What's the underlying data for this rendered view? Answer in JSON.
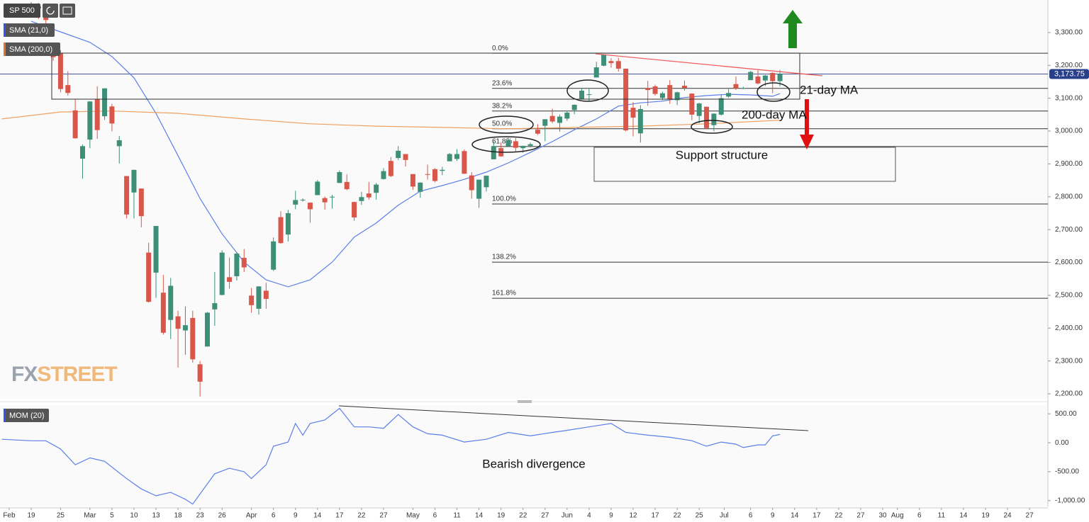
{
  "chart_data": {
    "type": "candlestick",
    "symbol": "SP 500",
    "indicators": [
      "SMA (21,0)",
      "SMA (200,0)"
    ],
    "last_price": {
      "value": 3173.75,
      "label": "3,173.75"
    },
    "candles": [
      [
        3380,
        3393,
        3378,
        3386
      ],
      [
        3380,
        3390,
        3341,
        3373
      ],
      [
        3360,
        3360,
        3328,
        3338
      ],
      [
        3257,
        3259,
        3214,
        3225
      ],
      [
        3238,
        3246,
        3118,
        3128
      ],
      [
        3140,
        3182,
        3108,
        3116
      ],
      [
        3063,
        3097,
        2977,
        2978
      ],
      [
        2916,
        2959,
        2855,
        2954
      ],
      [
        2974,
        3091,
        2948,
        3090
      ],
      [
        3096,
        3136,
        2976,
        3003
      ],
      [
        3045,
        3130,
        3034,
        3130
      ],
      [
        3075,
        3083,
        2999,
        3023
      ],
      [
        2954,
        2985,
        2901,
        2972
      ],
      [
        2863,
        2863,
        2734,
        2746
      ],
      [
        2813,
        2882,
        2734,
        2882
      ],
      [
        2825,
        2825,
        2707,
        2741
      ],
      [
        2630,
        2660,
        2478,
        2480
      ],
      [
        2569,
        2711,
        2492,
        2711
      ],
      [
        2508,
        2562,
        2380,
        2386
      ],
      [
        2425,
        2553,
        2367,
        2529
      ],
      [
        2436,
        2453,
        2280,
        2398
      ],
      [
        2393,
        2466,
        2319,
        2409
      ],
      [
        2431,
        2453,
        2295,
        2305
      ],
      [
        2290,
        2300,
        2192,
        2237
      ],
      [
        2344,
        2449,
        2344,
        2447
      ],
      [
        2457,
        2571,
        2407,
        2476
      ],
      [
        2501,
        2637,
        2500,
        2630
      ],
      [
        2555,
        2615,
        2520,
        2541
      ],
      [
        2558,
        2631,
        2545,
        2627
      ],
      [
        2614,
        2641,
        2571,
        2585
      ],
      [
        2499,
        2522,
        2447,
        2470
      ],
      [
        2459,
        2528,
        2441,
        2527
      ],
      [
        2514,
        2538,
        2459,
        2489
      ],
      [
        2578,
        2676,
        2574,
        2664
      ],
      [
        2738,
        2756,
        2657,
        2659
      ],
      [
        2685,
        2760,
        2664,
        2750
      ],
      [
        2776,
        2818,
        2762,
        2790
      ],
      [
        2790,
        2795,
        2785,
        2791
      ],
      [
        2782,
        2782,
        2721,
        2762
      ],
      [
        2805,
        2851,
        2805,
        2846
      ],
      [
        2796,
        2801,
        2761,
        2783
      ],
      [
        2799,
        2806,
        2764,
        2800
      ],
      [
        2842,
        2880,
        2842,
        2875
      ],
      [
        2845,
        2868,
        2820,
        2823
      ],
      [
        2784,
        2785,
        2727,
        2737
      ],
      [
        2787,
        2815,
        2775,
        2799
      ],
      [
        2810,
        2845,
        2791,
        2798
      ],
      [
        2812,
        2842,
        2791,
        2837
      ],
      [
        2854,
        2887,
        2852,
        2878
      ],
      [
        2909,
        2921,
        2860,
        2863
      ],
      [
        2918,
        2954,
        2912,
        2940
      ],
      [
        2930,
        2930,
        2892,
        2912
      ],
      [
        2869,
        2869,
        2821,
        2831
      ],
      [
        2815,
        2844,
        2797,
        2843
      ],
      [
        2869,
        2898,
        2852,
        2868
      ],
      [
        2884,
        2887,
        2844,
        2848
      ],
      [
        2879,
        2891,
        2866,
        2882
      ],
      [
        2908,
        2933,
        2908,
        2930
      ],
      [
        2915,
        2945,
        2909,
        2930
      ],
      [
        2939,
        2944,
        2870,
        2870
      ],
      [
        2865,
        2875,
        2794,
        2820
      ],
      [
        2794,
        2852,
        2766,
        2852
      ],
      [
        2829,
        2865,
        2816,
        2864
      ],
      [
        2914,
        2968,
        2914,
        2954
      ],
      [
        2948,
        2964,
        2922,
        2923
      ],
      [
        2954,
        2980,
        2953,
        2972
      ],
      [
        2969,
        2979,
        2938,
        2949
      ],
      [
        2948,
        2956,
        2934,
        2955
      ],
      [
        2955,
        2965,
        2950,
        2960
      ],
      [
        3004,
        3021,
        2988,
        2992
      ],
      [
        3016,
        3036,
        2969,
        3036
      ],
      [
        3046,
        3068,
        3024,
        3029
      ],
      [
        3025,
        3050,
        2998,
        3044
      ],
      [
        3038,
        3062,
        3031,
        3056
      ],
      [
        3064,
        3081,
        3051,
        3080
      ],
      [
        3098,
        3131,
        3098,
        3123
      ],
      [
        3112,
        3128,
        3090,
        3112
      ],
      [
        3163,
        3211,
        3163,
        3194
      ],
      [
        3199,
        3233,
        3197,
        3232
      ],
      [
        3213,
        3222,
        3193,
        3207
      ],
      [
        3213,
        3223,
        3181,
        3190
      ],
      [
        3190,
        3190,
        2999,
        3002
      ],
      [
        3071,
        3088,
        2984,
        3041
      ],
      [
        2993,
        3079,
        2965,
        3067
      ],
      [
        3131,
        3153,
        3077,
        3125
      ],
      [
        3136,
        3141,
        3108,
        3113
      ],
      [
        3101,
        3120,
        3094,
        3115
      ],
      [
        3140,
        3155,
        3083,
        3098
      ],
      [
        3094,
        3120,
        3079,
        3118
      ],
      [
        3138,
        3154,
        3123,
        3131
      ],
      [
        3114,
        3115,
        3033,
        3050
      ],
      [
        3046,
        3086,
        3024,
        3084
      ],
      [
        3074,
        3074,
        3005,
        3009
      ],
      [
        3018,
        3054,
        2999,
        3053
      ],
      [
        3050,
        3112,
        3047,
        3100
      ],
      [
        3105,
        3128,
        3101,
        3116
      ],
      [
        3143,
        3166,
        3125,
        3130
      ],
      [
        3130,
        3135,
        3128,
        3131
      ],
      [
        3155,
        3183,
        3155,
        3180
      ],
      [
        3166,
        3185,
        3142,
        3145
      ],
      [
        3154,
        3171,
        3137,
        3169
      ],
      [
        3177,
        3179,
        3115,
        3152
      ],
      [
        3152,
        3186,
        3136,
        3174
      ]
    ],
    "series": [
      {
        "name": "SMA (21,0)",
        "color": "#5b7fe8",
        "x": [
          0,
          4,
          8,
          11,
          14,
          17,
          20,
          23,
          26,
          29,
          32,
          35,
          38,
          41,
          44,
          47,
          50,
          53,
          56,
          59,
          62,
          65,
          68,
          71,
          74,
          77,
          80,
          83,
          86,
          89,
          92,
          95,
          98,
          101,
          102
        ],
        "values": [
          3334,
          3302,
          3270,
          3227,
          3162,
          3054,
          2925,
          2795,
          2687,
          2601,
          2547,
          2526,
          2547,
          2601,
          2677,
          2720,
          2774,
          2817,
          2834,
          2853,
          2875,
          2903,
          2935,
          2968,
          3004,
          3037,
          3076,
          3086,
          3091,
          3102,
          3108,
          3112,
          3110,
          3106,
          3114
        ]
      },
      {
        "name": "SMA (200,0)",
        "color": "#f0a060",
        "x": [
          -4,
          4,
          11,
          20,
          29,
          38,
          47,
          56,
          65,
          74,
          83,
          92,
          102
        ],
        "values": [
          3037,
          3058,
          3061,
          3054,
          3037,
          3022,
          3015,
          3011,
          3007,
          3011,
          3015,
          3022,
          3033
        ]
      }
    ],
    "fib_levels": [
      {
        "label": "0.0%",
        "value": 3237
      },
      {
        "label": "23.6%",
        "value": 3130
      },
      {
        "label": "38.2%",
        "value": 3061
      },
      {
        "label": "50.0%",
        "value": 3007
      },
      {
        "label": "61.8%",
        "value": 2953
      },
      {
        "label": "100.0%",
        "value": 2778
      },
      {
        "label": "138.2%",
        "value": 2601
      },
      {
        "label": "161.8%",
        "value": 2491
      }
    ],
    "xlim": [
      -4.25,
      138.5
    ],
    "ylim": [
      2185,
      3399
    ],
    "yticks": [
      {
        "value": 3300,
        "label": "3,300.00"
      },
      {
        "value": 3200,
        "label": "3,200.00"
      },
      {
        "value": 3100,
        "label": "3,100.00"
      },
      {
        "value": 3000,
        "label": "3,000.00"
      },
      {
        "value": 2900,
        "label": "2,900.00"
      },
      {
        "value": 2800,
        "label": "2,800.00"
      },
      {
        "value": 2700,
        "label": "2,700.00"
      },
      {
        "value": 2600,
        "label": "2,600.00"
      },
      {
        "value": 2500,
        "label": "2,500.00"
      },
      {
        "value": 2400,
        "label": "2,400.00"
      },
      {
        "value": 2300,
        "label": "2,300.00"
      },
      {
        "value": 2200,
        "label": "2,200.00"
      }
    ],
    "xticks": [
      {
        "value": -3,
        "label": "Feb"
      },
      {
        "value": 0,
        "label": "19"
      },
      {
        "value": 4,
        "label": "25"
      },
      {
        "value": 8,
        "label": "Mar"
      },
      {
        "value": 11,
        "label": "5"
      },
      {
        "value": 14,
        "label": "10"
      },
      {
        "value": 17,
        "label": "13"
      },
      {
        "value": 20,
        "label": "18"
      },
      {
        "value": 23,
        "label": "23"
      },
      {
        "value": 26,
        "label": "26"
      },
      {
        "value": 30,
        "label": "Apr"
      },
      {
        "value": 33,
        "label": "6"
      },
      {
        "value": 36,
        "label": "9"
      },
      {
        "value": 39,
        "label": "14"
      },
      {
        "value": 42,
        "label": "17"
      },
      {
        "value": 45,
        "label": "22"
      },
      {
        "value": 48,
        "label": "27"
      },
      {
        "value": 52,
        "label": "May"
      },
      {
        "value": 55,
        "label": "6"
      },
      {
        "value": 58,
        "label": "11"
      },
      {
        "value": 61,
        "label": "14"
      },
      {
        "value": 64,
        "label": "19"
      },
      {
        "value": 67,
        "label": "22"
      },
      {
        "value": 70,
        "label": "27"
      },
      {
        "value": 73,
        "label": "Jun"
      },
      {
        "value": 76,
        "label": "4"
      },
      {
        "value": 79,
        "label": "9"
      },
      {
        "value": 82,
        "label": "12"
      },
      {
        "value": 85,
        "label": "17"
      },
      {
        "value": 88,
        "label": "22"
      },
      {
        "value": 91,
        "label": "25"
      },
      {
        "value": 94.4,
        "label": "Jul"
      },
      {
        "value": 98,
        "label": "6"
      },
      {
        "value": 101,
        "label": "9"
      },
      {
        "value": 104,
        "label": "14"
      },
      {
        "value": 107,
        "label": "17"
      },
      {
        "value": 110,
        "label": "22"
      },
      {
        "value": 113,
        "label": "27"
      },
      {
        "value": 116,
        "label": "30"
      },
      {
        "value": 118,
        "label": "Aug"
      },
      {
        "value": 121,
        "label": "6"
      },
      {
        "value": 124,
        "label": "11"
      },
      {
        "value": 127,
        "label": "14"
      },
      {
        "value": 130,
        "label": "19"
      },
      {
        "value": 133,
        "label": "24"
      },
      {
        "value": 136,
        "label": "27"
      }
    ],
    "momentum": {
      "name": "MOM (20)",
      "color": "#5b7fe8",
      "x": [
        -4,
        0,
        2,
        4,
        6,
        8,
        10,
        13,
        15,
        17,
        19,
        21,
        22,
        25,
        27,
        29,
        30,
        32,
        33,
        35,
        36,
        37,
        38,
        40,
        42,
        44,
        46,
        48,
        50,
        52,
        54,
        56,
        59,
        62,
        65,
        68,
        71,
        73,
        76,
        79,
        81,
        84,
        87,
        90,
        92,
        94,
        96,
        97,
        99,
        100,
        101,
        102
      ],
      "values": [
        60,
        35,
        35,
        -107,
        -381,
        -262,
        -321,
        -619,
        -798,
        -917,
        -857,
        -976,
        -1060,
        -536,
        -440,
        -500,
        -619,
        -381,
        -60,
        12,
        333,
        131,
        333,
        393,
        595,
        274,
        274,
        250,
        488,
        274,
        155,
        131,
        12,
        60,
        179,
        119,
        179,
        214,
        274,
        333,
        179,
        131,
        95,
        36,
        -60,
        12,
        -24,
        -83,
        -36,
        -36,
        119,
        143
      ],
      "ylim": [
        -1100,
        650
      ],
      "yticks": [
        {
          "value": 500,
          "label": "500.00"
        },
        {
          "value": 0,
          "label": "0.00"
        },
        {
          "value": -500,
          "label": "-500.00"
        },
        {
          "value": -1000,
          "label": "-1,000.00"
        }
      ]
    },
    "annotations": {
      "ma21": "21-day MA",
      "ma200": "200-day MA",
      "support": "Support structure",
      "divergence": "Bearish divergence"
    },
    "logo": {
      "fx": "FX",
      "street": "STREET"
    },
    "colors": {
      "up": "#3d8f78",
      "down": "#d9574a"
    }
  }
}
